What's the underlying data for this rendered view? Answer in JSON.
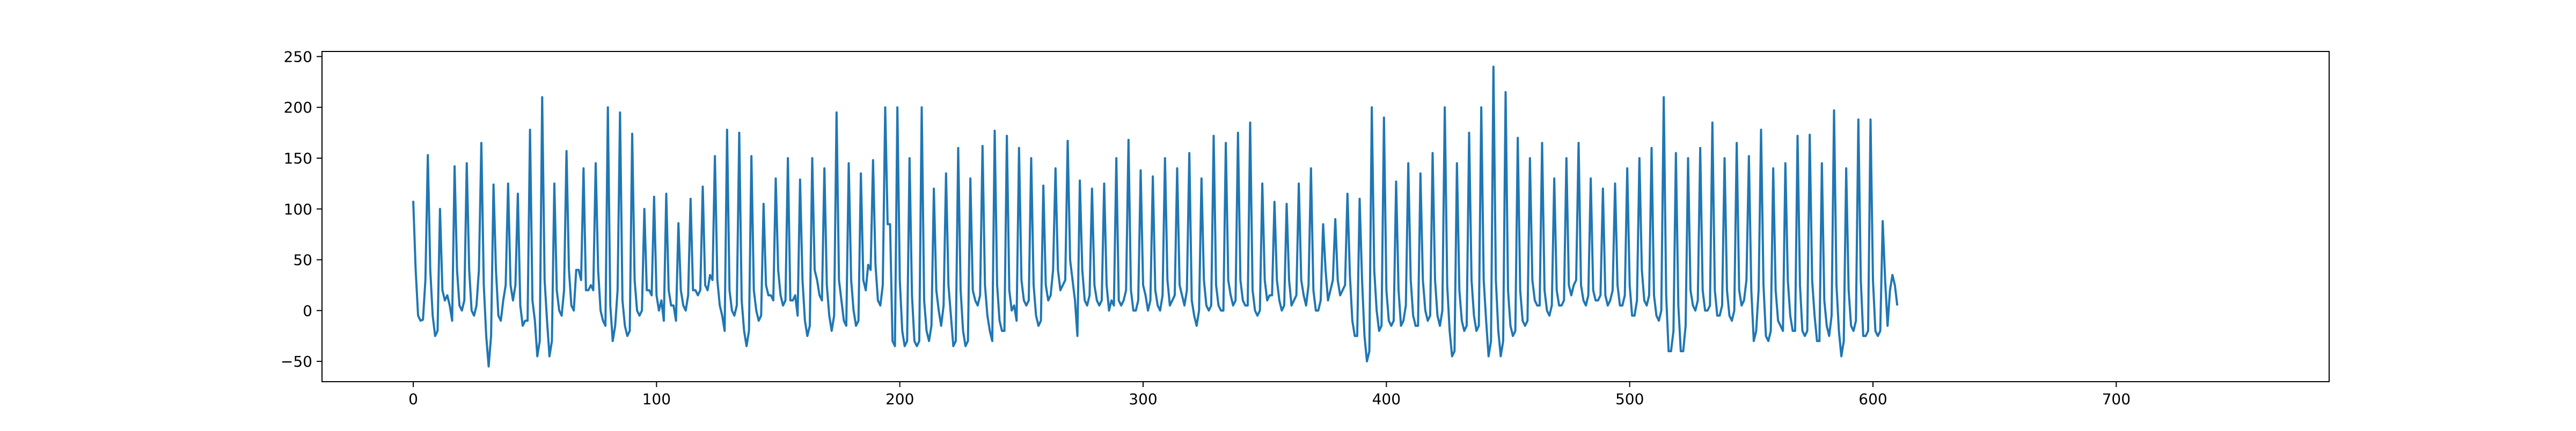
{
  "chart_data": {
    "type": "line",
    "title": "",
    "xlabel": "",
    "ylabel": "",
    "xlim": [
      -37.5,
      787.5
    ],
    "ylim": [
      -70,
      255
    ],
    "x_ticks": [
      0,
      100,
      200,
      300,
      400,
      500,
      600,
      700
    ],
    "y_ticks": [
      -50,
      0,
      50,
      100,
      150,
      200,
      250
    ],
    "x_tick_labels": [
      "0",
      "100",
      "200",
      "300",
      "400",
      "500",
      "600",
      "700"
    ],
    "y_tick_labels": [
      "−50",
      "0",
      "50",
      "100",
      "150",
      "200",
      "250"
    ],
    "grid": false,
    "legend": "none",
    "line_color": "#1f77b4",
    "series": [
      {
        "x_start": 0,
        "x_step": 1,
        "values": [
          108,
          40,
          -5,
          -10,
          -9,
          30,
          153,
          40,
          -5,
          -25,
          -20,
          100,
          20,
          10,
          15,
          5,
          -10,
          142,
          40,
          5,
          0,
          10,
          145,
          40,
          0,
          -5,
          5,
          40,
          165,
          25,
          -25,
          -55,
          -25,
          124,
          40,
          -5,
          -10,
          10,
          25,
          125,
          25,
          10,
          25,
          115,
          5,
          -15,
          -10,
          -10,
          178,
          10,
          -10,
          -45,
          -30,
          210,
          30,
          -10,
          -45,
          -30,
          125,
          20,
          0,
          -5,
          20,
          157,
          40,
          5,
          0,
          40,
          40,
          30,
          140,
          20,
          20,
          25,
          20,
          145,
          40,
          0,
          -10,
          -15,
          200,
          5,
          -30,
          -15,
          20,
          195,
          10,
          -15,
          -25,
          -20,
          174,
          30,
          0,
          -5,
          0,
          100,
          20,
          20,
          15,
          112,
          15,
          0,
          10,
          -10,
          115,
          20,
          5,
          5,
          -10,
          86,
          20,
          5,
          0,
          15,
          110,
          20,
          20,
          15,
          20,
          122,
          25,
          20,
          35,
          30,
          152,
          30,
          5,
          -5,
          -20,
          178,
          20,
          0,
          -5,
          5,
          175,
          10,
          -20,
          -35,
          -20,
          152,
          20,
          0,
          -10,
          -5,
          105,
          25,
          15,
          15,
          10,
          130,
          40,
          15,
          5,
          10,
          150,
          10,
          10,
          15,
          -5,
          129,
          30,
          -10,
          -25,
          -15,
          150,
          40,
          30,
          15,
          10,
          140,
          25,
          -5,
          -20,
          -5,
          195,
          30,
          10,
          -10,
          -15,
          145,
          30,
          0,
          -15,
          -10,
          135,
          30,
          20,
          45,
          40,
          148,
          45,
          10,
          5,
          25,
          200,
          85,
          85,
          -30,
          -35,
          200,
          30,
          -20,
          -35,
          -30,
          150,
          15,
          -30,
          -35,
          -30,
          200,
          10,
          -20,
          -30,
          -15,
          120,
          20,
          0,
          -15,
          5,
          135,
          25,
          -5,
          -35,
          -30,
          160,
          20,
          -20,
          -35,
          -30,
          130,
          20,
          10,
          5,
          15,
          162,
          25,
          -5,
          -20,
          -30,
          177,
          25,
          -10,
          -20,
          -20,
          172,
          20,
          0,
          5,
          -10,
          160,
          30,
          10,
          5,
          10,
          150,
          25,
          -5,
          -15,
          -10,
          123,
          25,
          10,
          15,
          40,
          140,
          40,
          20,
          25,
          30,
          167,
          50,
          30,
          10,
          -25,
          128,
          40,
          10,
          5,
          15,
          120,
          25,
          10,
          5,
          10,
          125,
          25,
          0,
          10,
          5,
          150,
          10,
          5,
          10,
          20,
          168,
          20,
          0,
          0,
          10,
          138,
          25,
          15,
          0,
          10,
          132,
          20,
          5,
          0,
          15,
          150,
          30,
          5,
          10,
          15,
          140,
          25,
          15,
          5,
          20,
          155,
          10,
          -5,
          -15,
          0,
          130,
          30,
          5,
          0,
          5,
          172,
          25,
          5,
          0,
          0,
          165,
          30,
          15,
          5,
          10,
          175,
          30,
          10,
          5,
          5,
          185,
          20,
          0,
          -5,
          0,
          125,
          30,
          10,
          15,
          15,
          107,
          30,
          10,
          0,
          5,
          105,
          30,
          5,
          10,
          15,
          125,
          30,
          15,
          5,
          25,
          140,
          20,
          0,
          0,
          10,
          85,
          40,
          10,
          20,
          30,
          90,
          30,
          15,
          20,
          25,
          115,
          35,
          -10,
          -25,
          -25,
          110,
          30,
          -25,
          -50,
          -40,
          200,
          40,
          0,
          -20,
          -15,
          190,
          20,
          -10,
          -15,
          -10,
          127,
          20,
          -15,
          -10,
          5,
          145,
          30,
          -5,
          -15,
          -15,
          135,
          30,
          0,
          -10,
          -5,
          155,
          30,
          -5,
          -15,
          0,
          200,
          25,
          -20,
          -45,
          -40,
          145,
          20,
          -10,
          -20,
          -15,
          175,
          30,
          -5,
          -20,
          -15,
          200,
          30,
          -10,
          -45,
          -30,
          240,
          30,
          -20,
          -45,
          -30,
          215,
          20,
          -15,
          -25,
          -20,
          170,
          20,
          -10,
          -15,
          -10,
          150,
          30,
          10,
          5,
          5,
          165,
          20,
          0,
          -5,
          5,
          130,
          20,
          5,
          5,
          10,
          150,
          25,
          15,
          25,
          30,
          165,
          25,
          10,
          5,
          15,
          130,
          20,
          10,
          10,
          15,
          120,
          15,
          5,
          10,
          20,
          125,
          25,
          5,
          5,
          15,
          140,
          25,
          -5,
          -5,
          10,
          150,
          40,
          10,
          5,
          15,
          160,
          15,
          -5,
          -10,
          0,
          210,
          15,
          -40,
          -40,
          -20,
          155,
          5,
          -40,
          -40,
          -15,
          150,
          20,
          5,
          0,
          10,
          160,
          20,
          0,
          0,
          5,
          185,
          20,
          -5,
          -5,
          5,
          150,
          20,
          -5,
          -10,
          0,
          165,
          20,
          5,
          10,
          30,
          152,
          20,
          -30,
          -20,
          20,
          178,
          25,
          -25,
          -30,
          -20,
          140,
          20,
          -10,
          -15,
          -20,
          145,
          30,
          -5,
          -20,
          -20,
          172,
          25,
          -20,
          -25,
          -20,
          173,
          30,
          -5,
          -30,
          -30,
          145,
          10,
          -15,
          -25,
          -5,
          197,
          25,
          -20,
          -45,
          -30,
          140,
          20,
          -15,
          -20,
          -10,
          188,
          30,
          -25,
          -25,
          -20,
          188,
          30,
          -20,
          -25,
          -20,
          88,
          30,
          -15,
          20,
          35,
          25,
          5
        ]
      }
    ]
  }
}
